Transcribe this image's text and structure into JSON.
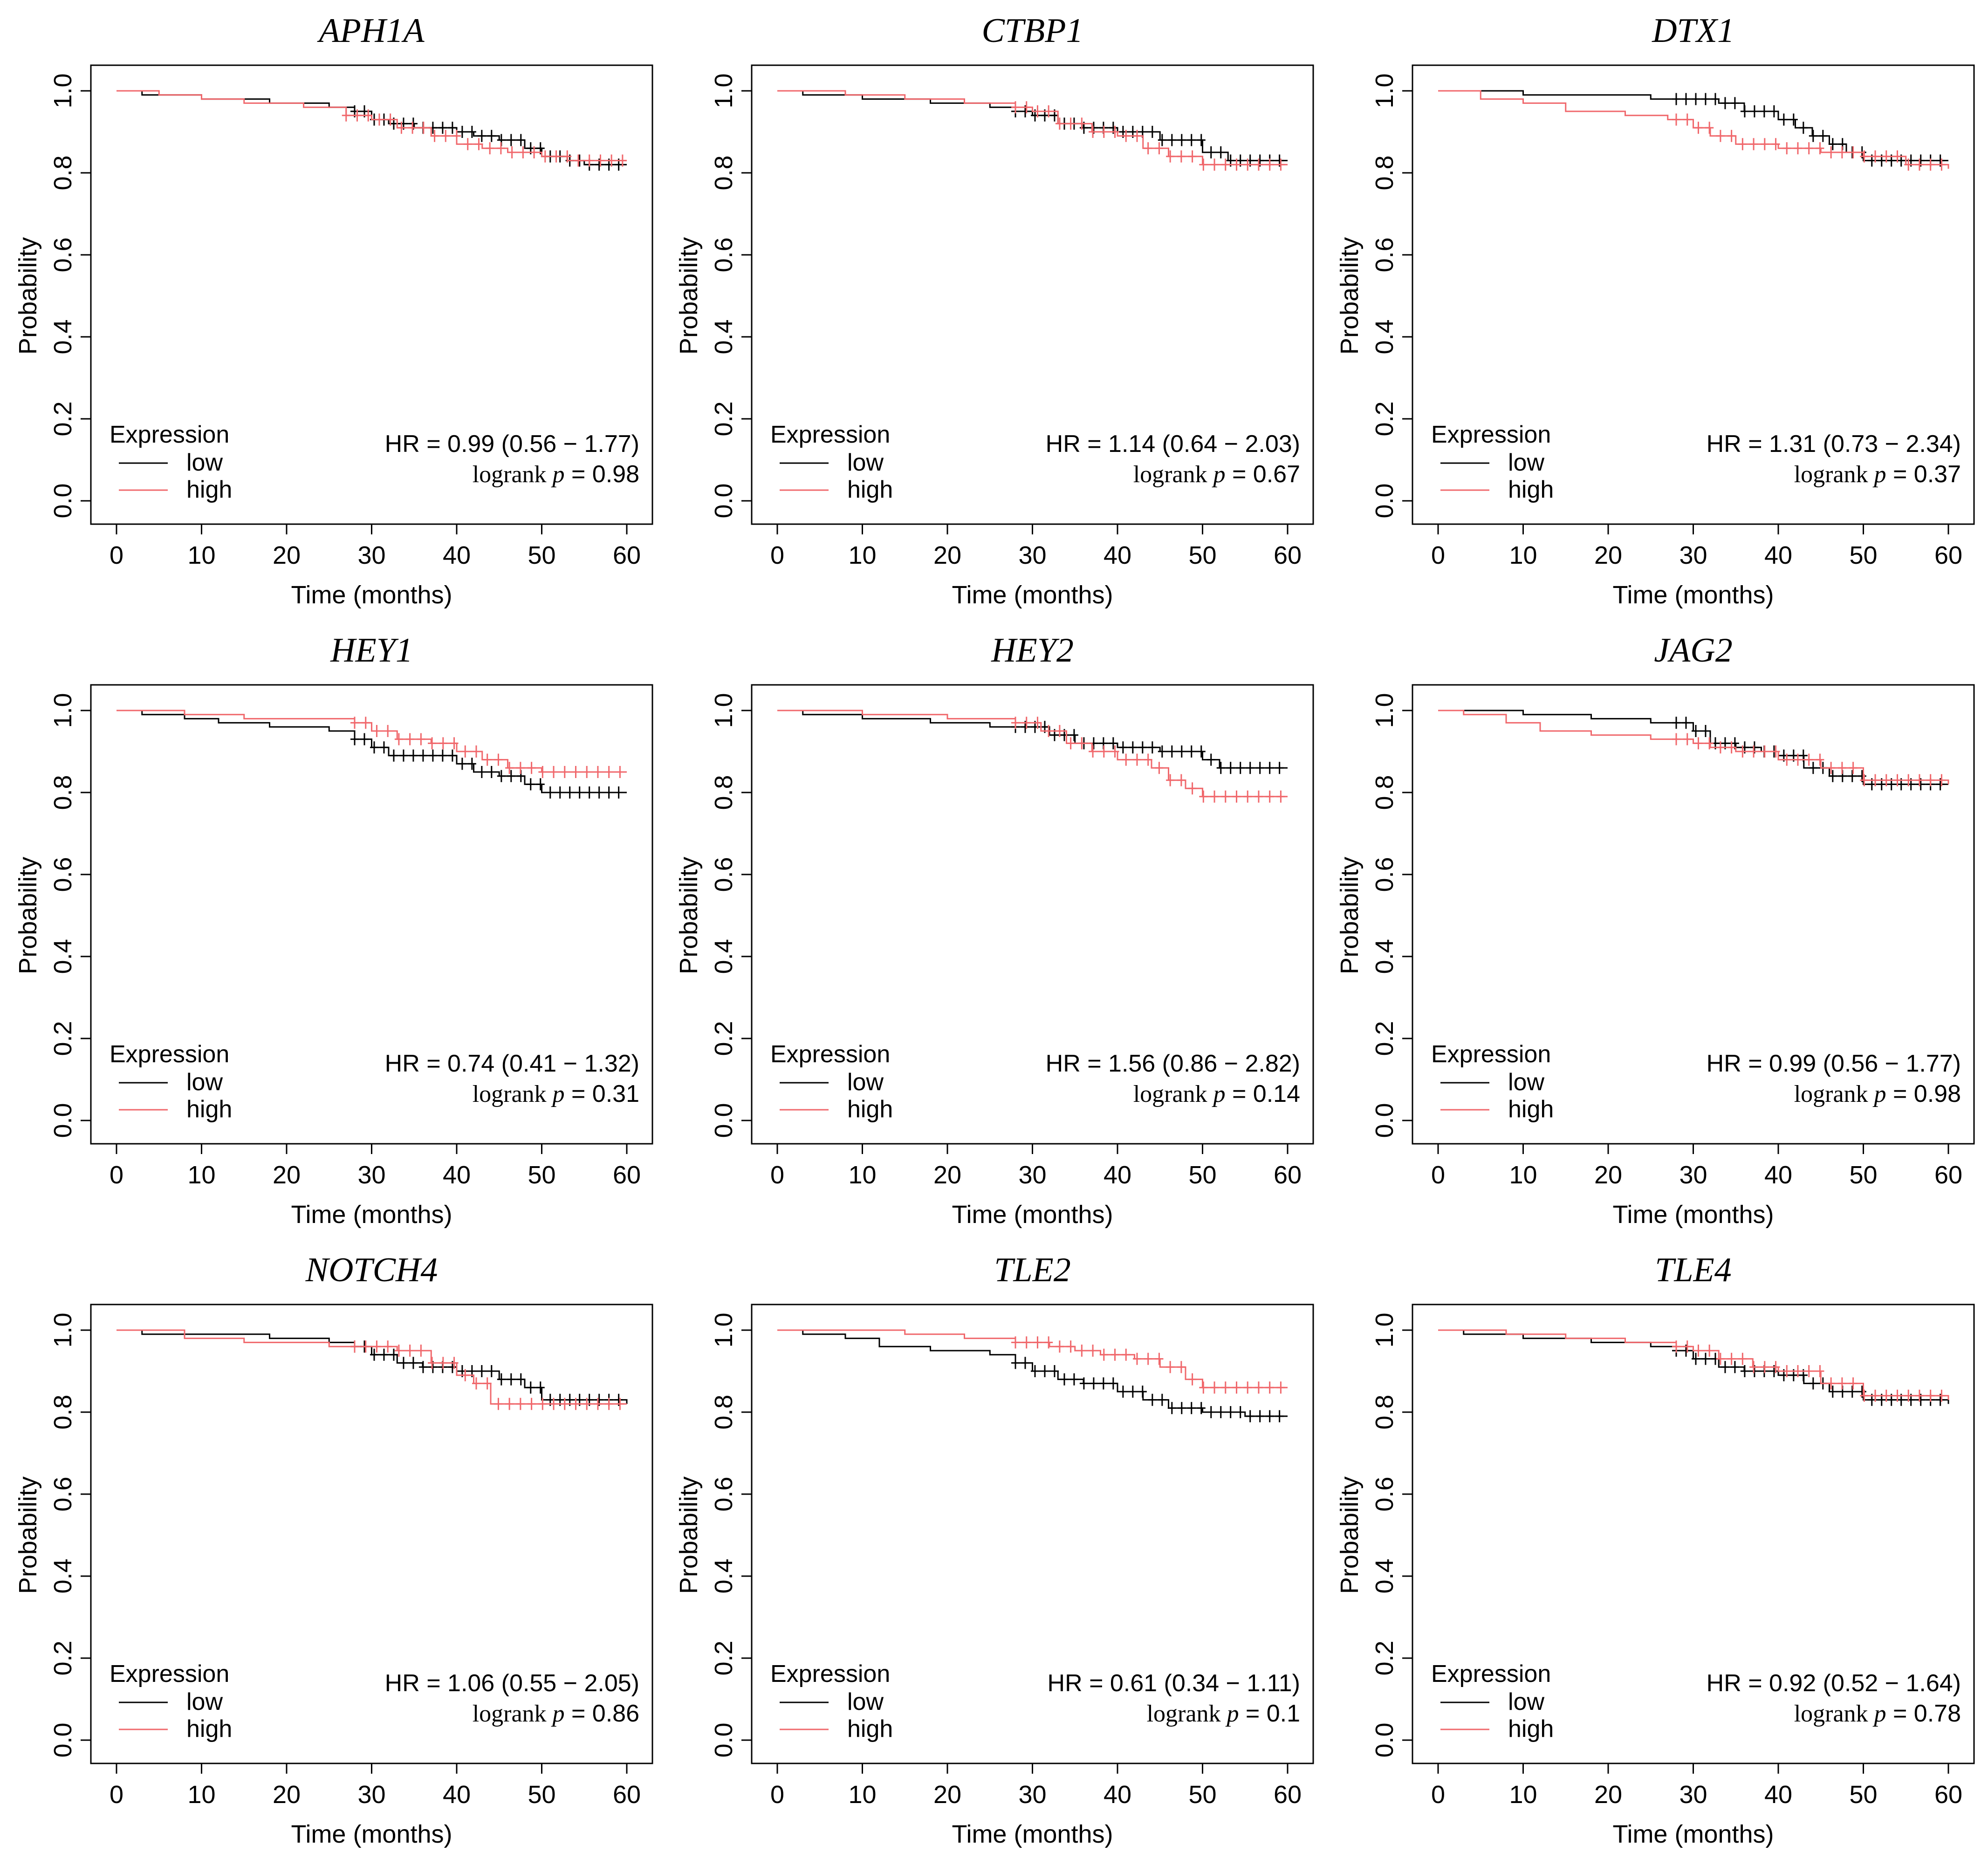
{
  "figure": {
    "xlabel": "Time (months)",
    "ylabel": "Probability",
    "legend_title": "Expression"
  },
  "chart_data": [
    {
      "type": "line",
      "title": "APH1A",
      "xlabel": "Time (months)",
      "ylabel": "Probability",
      "xlim": [
        0,
        60
      ],
      "ylim": [
        0,
        1
      ],
      "xticks": [
        "0",
        "10",
        "20",
        "30",
        "40",
        "50",
        "60"
      ],
      "yticks": [
        "0.0",
        "0.2",
        "0.4",
        "0.6",
        "0.8",
        "1.0"
      ],
      "legend": {
        "title": "Expression",
        "position": "bottom-left",
        "entries": [
          {
            "label": "low",
            "color": "#000000"
          },
          {
            "label": "high",
            "color": "#f0686c"
          }
        ]
      },
      "stats": {
        "hr_line": "HR = 0.99 (0.56 − 1.77)",
        "logrank_word": "logrank",
        "p_symbol": "p",
        "p_value": "= 0.98"
      },
      "series": [
        {
          "name": "low",
          "color": "#000000",
          "x": [
            0,
            3,
            10,
            18,
            25,
            28,
            30,
            32,
            35,
            38,
            40,
            42,
            45,
            48,
            50,
            53,
            55,
            60
          ],
          "y": [
            1.0,
            0.99,
            0.98,
            0.97,
            0.96,
            0.95,
            0.93,
            0.92,
            0.91,
            0.91,
            0.9,
            0.89,
            0.88,
            0.86,
            0.84,
            0.83,
            0.82,
            0.82
          ],
          "censor_from": 28
        },
        {
          "name": "high",
          "color": "#f0686c",
          "x": [
            0,
            5,
            10,
            15,
            22,
            27,
            30,
            33,
            37,
            40,
            43,
            46,
            50,
            53,
            60
          ],
          "y": [
            1.0,
            0.99,
            0.98,
            0.97,
            0.96,
            0.94,
            0.93,
            0.91,
            0.89,
            0.87,
            0.86,
            0.85,
            0.84,
            0.83,
            0.83
          ],
          "censor_from": 27
        }
      ]
    },
    {
      "type": "line",
      "title": "CTBP1",
      "xlabel": "Time (months)",
      "ylabel": "Probability",
      "xlim": [
        0,
        60
      ],
      "ylim": [
        0,
        1
      ],
      "xticks": [
        "0",
        "10",
        "20",
        "30",
        "40",
        "50",
        "60"
      ],
      "yticks": [
        "0.0",
        "0.2",
        "0.4",
        "0.6",
        "0.8",
        "1.0"
      ],
      "legend": {
        "title": "Expression",
        "position": "bottom-left",
        "entries": [
          {
            "label": "low",
            "color": "#000000"
          },
          {
            "label": "high",
            "color": "#f0686c"
          }
        ]
      },
      "stats": {
        "hr_line": "HR = 1.14 (0.64 − 2.03)",
        "logrank_word": "logrank",
        "p_symbol": "p",
        "p_value": "= 0.67"
      },
      "series": [
        {
          "name": "low",
          "color": "#000000",
          "x": [
            0,
            3,
            10,
            18,
            25,
            28,
            30,
            33,
            36,
            40,
            45,
            50,
            53,
            60
          ],
          "y": [
            1.0,
            0.99,
            0.98,
            0.97,
            0.96,
            0.95,
            0.94,
            0.92,
            0.91,
            0.9,
            0.88,
            0.85,
            0.83,
            0.83
          ],
          "censor_from": 28
        },
        {
          "name": "high",
          "color": "#f0686c",
          "x": [
            0,
            8,
            15,
            22,
            28,
            30,
            33,
            37,
            40,
            43,
            46,
            50,
            60
          ],
          "y": [
            1.0,
            0.99,
            0.98,
            0.97,
            0.96,
            0.95,
            0.92,
            0.9,
            0.89,
            0.86,
            0.84,
            0.82,
            0.82
          ],
          "censor_from": 28
        }
      ]
    },
    {
      "type": "line",
      "title": "DTX1",
      "xlabel": "Time (months)",
      "ylabel": "Probability",
      "xlim": [
        0,
        60
      ],
      "ylim": [
        0,
        1
      ],
      "xticks": [
        "0",
        "10",
        "20",
        "30",
        "40",
        "50",
        "60"
      ],
      "yticks": [
        "0.0",
        "0.2",
        "0.4",
        "0.6",
        "0.8",
        "1.0"
      ],
      "legend": {
        "title": "Expression",
        "position": "bottom-left",
        "entries": [
          {
            "label": "low",
            "color": "#000000"
          },
          {
            "label": "high",
            "color": "#f0686c"
          }
        ]
      },
      "stats": {
        "hr_line": "HR = 1.31 (0.73 − 2.34)",
        "logrank_word": "logrank",
        "p_symbol": "p",
        "p_value": "= 0.37"
      },
      "series": [
        {
          "name": "low",
          "color": "#000000",
          "x": [
            0,
            3,
            10,
            18,
            25,
            30,
            33,
            36,
            40,
            42,
            44,
            46,
            48,
            50,
            60
          ],
          "y": [
            1.0,
            1.0,
            0.99,
            0.99,
            0.98,
            0.98,
            0.97,
            0.95,
            0.93,
            0.91,
            0.89,
            0.87,
            0.85,
            0.83,
            0.83
          ],
          "censor_from": 28
        },
        {
          "name": "high",
          "color": "#f0686c",
          "x": [
            0,
            5,
            10,
            15,
            22,
            27,
            30,
            32,
            35,
            40,
            45,
            50,
            55,
            60
          ],
          "y": [
            1.0,
            0.98,
            0.97,
            0.95,
            0.94,
            0.93,
            0.91,
            0.89,
            0.87,
            0.86,
            0.85,
            0.84,
            0.82,
            0.81
          ],
          "censor_from": 28
        }
      ]
    },
    {
      "type": "line",
      "title": "HEY1",
      "xlabel": "Time (months)",
      "ylabel": "Probability",
      "xlim": [
        0,
        60
      ],
      "ylim": [
        0,
        1
      ],
      "xticks": [
        "0",
        "10",
        "20",
        "30",
        "40",
        "50",
        "60"
      ],
      "yticks": [
        "0.0",
        "0.2",
        "0.4",
        "0.6",
        "0.8",
        "1.0"
      ],
      "legend": {
        "title": "Expression",
        "position": "bottom-left",
        "entries": [
          {
            "label": "low",
            "color": "#000000"
          },
          {
            "label": "high",
            "color": "#f0686c"
          }
        ]
      },
      "stats": {
        "hr_line": "HR = 0.74 (0.41 − 1.32)",
        "logrank_word": "logrank",
        "p_symbol": "p",
        "p_value": "= 0.31"
      },
      "series": [
        {
          "name": "low",
          "color": "#000000",
          "x": [
            0,
            3,
            8,
            12,
            18,
            25,
            28,
            30,
            32,
            35,
            40,
            42,
            45,
            48,
            50,
            60
          ],
          "y": [
            1.0,
            0.99,
            0.98,
            0.97,
            0.96,
            0.95,
            0.93,
            0.91,
            0.89,
            0.89,
            0.87,
            0.85,
            0.84,
            0.82,
            0.8,
            0.8
          ],
          "censor_from": 28
        },
        {
          "name": "high",
          "color": "#f0686c",
          "x": [
            0,
            8,
            15,
            22,
            28,
            30,
            33,
            37,
            40,
            43,
            46,
            50,
            60
          ],
          "y": [
            1.0,
            0.99,
            0.98,
            0.98,
            0.97,
            0.95,
            0.93,
            0.92,
            0.9,
            0.88,
            0.86,
            0.85,
            0.85
          ],
          "censor_from": 28
        }
      ]
    },
    {
      "type": "line",
      "title": "HEY2",
      "xlabel": "Time (months)",
      "ylabel": "Probability",
      "xlim": [
        0,
        60
      ],
      "ylim": [
        0,
        1
      ],
      "xticks": [
        "0",
        "10",
        "20",
        "30",
        "40",
        "50",
        "60"
      ],
      "yticks": [
        "0.0",
        "0.2",
        "0.4",
        "0.6",
        "0.8",
        "1.0"
      ],
      "legend": {
        "title": "Expression",
        "position": "bottom-left",
        "entries": [
          {
            "label": "low",
            "color": "#000000"
          },
          {
            "label": "high",
            "color": "#f0686c"
          }
        ]
      },
      "stats": {
        "hr_line": "HR = 1.56 (0.86 − 2.82)",
        "logrank_word": "logrank",
        "p_symbol": "p",
        "p_value": "= 0.14"
      },
      "series": [
        {
          "name": "low",
          "color": "#000000",
          "x": [
            0,
            3,
            10,
            18,
            25,
            28,
            32,
            35,
            40,
            45,
            50,
            52,
            60
          ],
          "y": [
            1.0,
            0.99,
            0.98,
            0.97,
            0.96,
            0.96,
            0.94,
            0.92,
            0.91,
            0.9,
            0.88,
            0.86,
            0.86
          ],
          "censor_from": 28
        },
        {
          "name": "high",
          "color": "#f0686c",
          "x": [
            0,
            10,
            20,
            28,
            31,
            34,
            37,
            40,
            44,
            46,
            48,
            50,
            60
          ],
          "y": [
            1.0,
            0.99,
            0.98,
            0.97,
            0.95,
            0.92,
            0.9,
            0.88,
            0.86,
            0.83,
            0.81,
            0.79,
            0.79
          ],
          "censor_from": 28
        }
      ]
    },
    {
      "type": "line",
      "title": "JAG2",
      "xlabel": "Time (months)",
      "ylabel": "Probability",
      "xlim": [
        0,
        60
      ],
      "ylim": [
        0,
        1
      ],
      "xticks": [
        "0",
        "10",
        "20",
        "30",
        "40",
        "50",
        "60"
      ],
      "yticks": [
        "0.0",
        "0.2",
        "0.4",
        "0.6",
        "0.8",
        "1.0"
      ],
      "legend": {
        "title": "Expression",
        "position": "bottom-left",
        "entries": [
          {
            "label": "low",
            "color": "#000000"
          },
          {
            "label": "high",
            "color": "#f0686c"
          }
        ]
      },
      "stats": {
        "hr_line": "HR = 0.99 (0.56 − 1.77)",
        "logrank_word": "logrank",
        "p_symbol": "p",
        "p_value": "= 0.98"
      },
      "series": [
        {
          "name": "low",
          "color": "#000000",
          "x": [
            0,
            3,
            10,
            18,
            25,
            28,
            30,
            32,
            35,
            38,
            40,
            43,
            46,
            50,
            60
          ],
          "y": [
            1.0,
            1.0,
            0.99,
            0.98,
            0.97,
            0.97,
            0.95,
            0.92,
            0.91,
            0.9,
            0.89,
            0.86,
            0.84,
            0.82,
            0.82
          ],
          "censor_from": 28
        },
        {
          "name": "high",
          "color": "#f0686c",
          "x": [
            0,
            3,
            8,
            12,
            18,
            25,
            30,
            32,
            35,
            40,
            45,
            50,
            60
          ],
          "y": [
            1.0,
            0.99,
            0.97,
            0.95,
            0.94,
            0.93,
            0.92,
            0.91,
            0.9,
            0.88,
            0.86,
            0.83,
            0.82
          ],
          "censor_from": 28
        }
      ]
    },
    {
      "type": "line",
      "title": "NOTCH4",
      "xlabel": "Time (months)",
      "ylabel": "Probability",
      "xlim": [
        0,
        60
      ],
      "ylim": [
        0,
        1
      ],
      "xticks": [
        "0",
        "10",
        "20",
        "30",
        "40",
        "50",
        "60"
      ],
      "yticks": [
        "0.0",
        "0.2",
        "0.4",
        "0.6",
        "0.8",
        "1.0"
      ],
      "legend": {
        "title": "Expression",
        "position": "bottom-left",
        "entries": [
          {
            "label": "low",
            "color": "#000000"
          },
          {
            "label": "high",
            "color": "#f0686c"
          }
        ]
      },
      "stats": {
        "hr_line": "HR = 1.06 (0.55 − 2.05)",
        "logrank_word": "logrank",
        "p_symbol": "p",
        "p_value": "= 0.86"
      },
      "series": [
        {
          "name": "low",
          "color": "#000000",
          "x": [
            0,
            3,
            10,
            18,
            25,
            28,
            30,
            33,
            36,
            40,
            45,
            48,
            50,
            60
          ],
          "y": [
            1.0,
            0.99,
            0.99,
            0.98,
            0.97,
            0.96,
            0.94,
            0.92,
            0.91,
            0.9,
            0.88,
            0.86,
            0.83,
            0.82
          ],
          "censor_from": 28
        },
        {
          "name": "high",
          "color": "#f0686c",
          "x": [
            0,
            8,
            15,
            25,
            28,
            33,
            37,
            40,
            42,
            44,
            60
          ],
          "y": [
            1.0,
            0.98,
            0.97,
            0.96,
            0.96,
            0.95,
            0.92,
            0.89,
            0.87,
            0.82,
            0.82
          ],
          "censor_from": 28
        }
      ]
    },
    {
      "type": "line",
      "title": "TLE2",
      "xlabel": "Time (months)",
      "ylabel": "Probability",
      "xlim": [
        0,
        60
      ],
      "ylim": [
        0,
        1
      ],
      "xticks": [
        "0",
        "10",
        "20",
        "30",
        "40",
        "50",
        "60"
      ],
      "yticks": [
        "0.0",
        "0.2",
        "0.4",
        "0.6",
        "0.8",
        "1.0"
      ],
      "legend": {
        "title": "Expression",
        "position": "bottom-left",
        "entries": [
          {
            "label": "low",
            "color": "#000000"
          },
          {
            "label": "high",
            "color": "#f0686c"
          }
        ]
      },
      "stats": {
        "hr_line": "HR = 0.61 (0.34 − 1.11)",
        "logrank_word": "logrank",
        "p_symbol": "p",
        "p_value": "= 0.1"
      },
      "series": [
        {
          "name": "low",
          "color": "#000000",
          "x": [
            0,
            3,
            8,
            12,
            18,
            25,
            28,
            30,
            33,
            36,
            40,
            43,
            46,
            50,
            55,
            60
          ],
          "y": [
            1.0,
            0.99,
            0.98,
            0.96,
            0.95,
            0.94,
            0.92,
            0.9,
            0.88,
            0.87,
            0.85,
            0.83,
            0.81,
            0.8,
            0.79,
            0.79
          ],
          "censor_from": 28
        },
        {
          "name": "high",
          "color": "#f0686c",
          "x": [
            0,
            8,
            15,
            22,
            28,
            32,
            35,
            38,
            42,
            45,
            48,
            50,
            60
          ],
          "y": [
            1.0,
            1.0,
            0.99,
            0.98,
            0.97,
            0.96,
            0.95,
            0.94,
            0.93,
            0.91,
            0.88,
            0.86,
            0.86
          ],
          "censor_from": 28
        }
      ]
    },
    {
      "type": "line",
      "title": "TLE4",
      "xlabel": "Time (months)",
      "ylabel": "Probability",
      "xlim": [
        0,
        60
      ],
      "ylim": [
        0,
        1
      ],
      "xticks": [
        "0",
        "10",
        "20",
        "30",
        "40",
        "50",
        "60"
      ],
      "yticks": [
        "0.0",
        "0.2",
        "0.4",
        "0.6",
        "0.8",
        "1.0"
      ],
      "legend": {
        "title": "Expression",
        "position": "bottom-left",
        "entries": [
          {
            "label": "low",
            "color": "#000000"
          },
          {
            "label": "high",
            "color": "#f0686c"
          }
        ]
      },
      "stats": {
        "hr_line": "HR = 0.92 (0.52 − 1.64)",
        "logrank_word": "logrank",
        "p_symbol": "p",
        "p_value": "= 0.78"
      },
      "series": [
        {
          "name": "low",
          "color": "#000000",
          "x": [
            0,
            3,
            10,
            18,
            25,
            28,
            30,
            33,
            36,
            40,
            43,
            46,
            50,
            60
          ],
          "y": [
            1.0,
            0.99,
            0.98,
            0.97,
            0.96,
            0.95,
            0.93,
            0.91,
            0.9,
            0.89,
            0.87,
            0.85,
            0.83,
            0.82
          ],
          "censor_from": 28
        },
        {
          "name": "high",
          "color": "#f0686c",
          "x": [
            0,
            8,
            15,
            22,
            28,
            30,
            33,
            37,
            40,
            45,
            50,
            60
          ],
          "y": [
            1.0,
            0.99,
            0.98,
            0.97,
            0.96,
            0.95,
            0.93,
            0.91,
            0.9,
            0.87,
            0.84,
            0.83
          ],
          "censor_from": 28
        }
      ]
    }
  ]
}
